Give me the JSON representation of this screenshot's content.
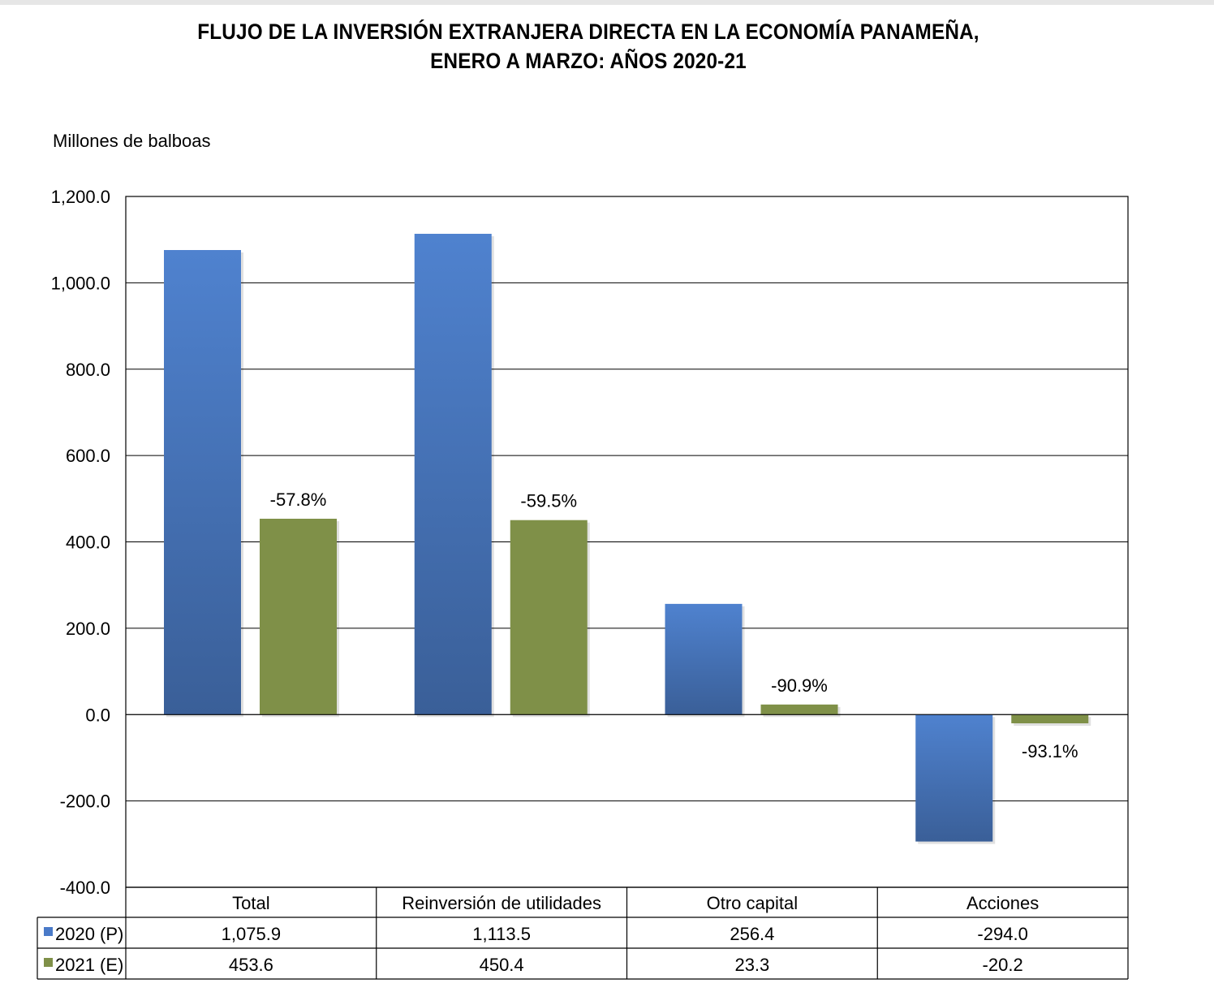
{
  "chart_data": {
    "type": "bar",
    "title_line1": "FLUJO DE LA INVERSIÓN EXTRANJERA DIRECTA EN LA ECONOMÍA PANAMEÑA,",
    "title_line2": "ENERO A MARZO: AÑOS 2020-21",
    "ylabel": "Millones de balboas",
    "ylim": [
      -400,
      1200
    ],
    "yticks": [
      1200,
      1000,
      800,
      600,
      400,
      200,
      0,
      -200,
      -400
    ],
    "ytick_labels": [
      "1,200.0",
      "1,000.0",
      "800.0",
      "600.0",
      "400.0",
      "200.0",
      "0.0",
      "-200.0",
      "-400.0"
    ],
    "grid": true,
    "legend": "data-table",
    "categories": [
      "Total",
      "Reinversión de utilidades",
      "Otro capital",
      "Acciones"
    ],
    "series": [
      {
        "name": "2020 (P)",
        "color": "#4a7ac8",
        "values": [
          1075.9,
          1113.5,
          256.4,
          -294.0
        ],
        "value_labels": [
          "1,075.9",
          "1,113.5",
          "256.4",
          "-294.0"
        ]
      },
      {
        "name": "2021 (E)",
        "color": "#7f9048",
        "values": [
          453.6,
          450.4,
          23.3,
          -20.2
        ],
        "value_labels": [
          "453.6",
          "450.4",
          "23.3",
          "-20.2"
        ]
      }
    ],
    "annotations": [
      "-57.8%",
      "-59.5%",
      "-90.9%",
      "-93.1%"
    ]
  }
}
